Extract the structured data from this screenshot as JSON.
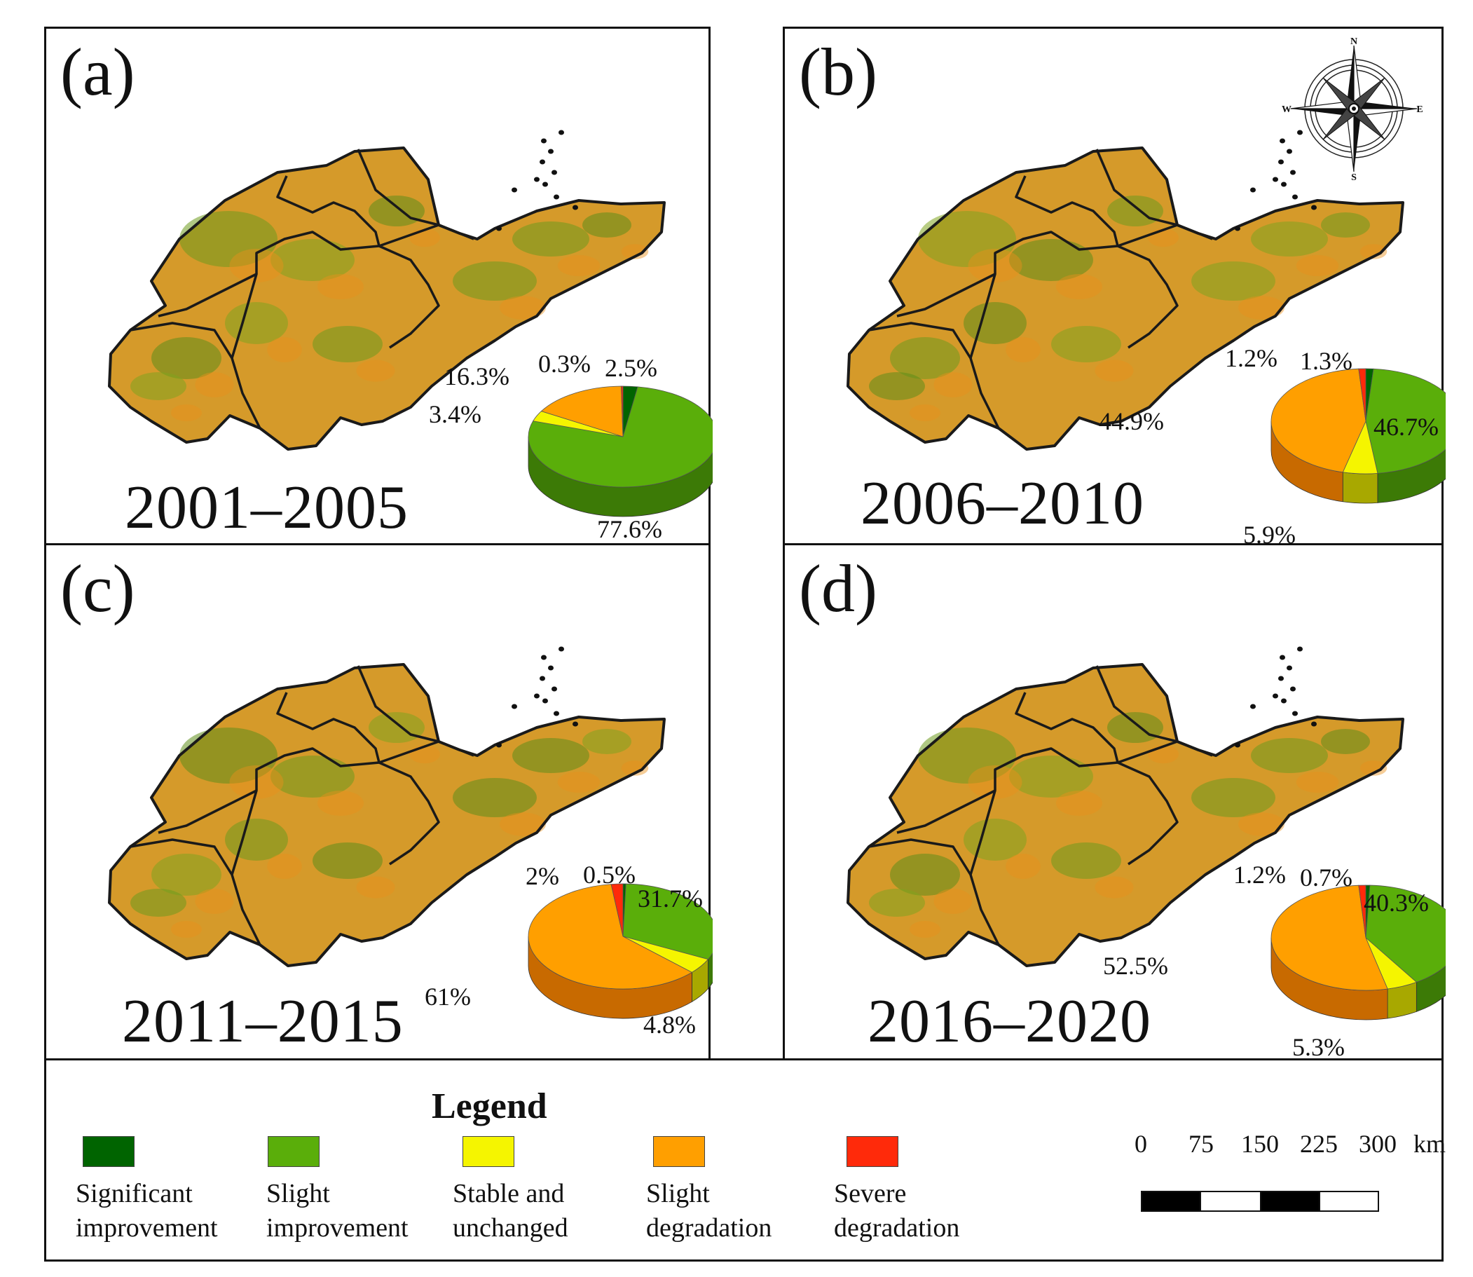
{
  "panels": [
    {
      "label": "(a)",
      "period": "2001–2005",
      "slices": {
        "significant_improvement": 2.5,
        "slight_improvement": 77.6,
        "stable_unchanged": 3.4,
        "slight_degradation": 16.3,
        "severe_degradation": 0.3
      },
      "labels": [
        "2.5%",
        "77.6%",
        "3.4%",
        "16.3%",
        "0.3%"
      ]
    },
    {
      "label": "(b)",
      "period": "2006–2010",
      "slices": {
        "significant_improvement": 1.3,
        "slight_improvement": 46.7,
        "stable_unchanged": 5.9,
        "slight_degradation": 44.9,
        "severe_degradation": 1.2
      },
      "labels": [
        "1.3%",
        "46.7%",
        "5.9%",
        "44.9%",
        "1.2%"
      ]
    },
    {
      "label": "(c)",
      "period": "2011–2015",
      "slices": {
        "significant_improvement": 0.5,
        "slight_improvement": 31.7,
        "stable_unchanged": 4.8,
        "slight_degradation": 61,
        "severe_degradation": 2
      },
      "labels": [
        "0.5%",
        "31.7%",
        "4.8%",
        "61%",
        "2%"
      ]
    },
    {
      "label": "(d)",
      "period": "2016–2020",
      "slices": {
        "significant_improvement": 0.7,
        "slight_improvement": 40.3,
        "stable_unchanged": 5.3,
        "slight_degradation": 52.5,
        "severe_degradation": 1.2
      },
      "labels": [
        "0.7%",
        "40.3%",
        "5.3%",
        "52.5%",
        "1.2%"
      ]
    }
  ],
  "compass": {
    "n": "N",
    "e": "E",
    "s": "S",
    "w": "W"
  },
  "legend": {
    "title": "Legend",
    "items": [
      {
        "label_line1": "Significant",
        "label_line2": "improvement",
        "color": "#006400"
      },
      {
        "label_line1": "Slight",
        "label_line2": "improvement",
        "color": "#5aae0a"
      },
      {
        "label_line1": "Stable and",
        "label_line2": "unchanged",
        "color": "#f5f500"
      },
      {
        "label_line1": "Slight",
        "label_line2": "degradation",
        "color": "#ff9f00"
      },
      {
        "label_line1": "Severe",
        "label_line2": "degradation",
        "color": "#ff2a0a"
      }
    ]
  },
  "scale_bar": {
    "ticks": [
      "0",
      "75",
      "150",
      "225",
      "300"
    ],
    "unit": "km"
  },
  "chart_data": [
    {
      "type": "pie",
      "title": "2001–2005",
      "categories": [
        "Significant improvement",
        "Slight improvement",
        "Stable and unchanged",
        "Slight degradation",
        "Severe degradation"
      ],
      "values": [
        2.5,
        77.6,
        3.4,
        16.3,
        0.3
      ]
    },
    {
      "type": "pie",
      "title": "2006–2010",
      "categories": [
        "Significant improvement",
        "Slight improvement",
        "Stable and unchanged",
        "Slight degradation",
        "Severe degradation"
      ],
      "values": [
        1.3,
        46.7,
        5.9,
        44.9,
        1.2
      ]
    },
    {
      "type": "pie",
      "title": "2011–2015",
      "categories": [
        "Significant improvement",
        "Slight improvement",
        "Stable and unchanged",
        "Slight degradation",
        "Severe degradation"
      ],
      "values": [
        0.5,
        31.7,
        4.8,
        61,
        2
      ]
    },
    {
      "type": "pie",
      "title": "2016–2020",
      "categories": [
        "Significant improvement",
        "Slight improvement",
        "Stable and unchanged",
        "Slight degradation",
        "Severe degradation"
      ],
      "values": [
        0.7,
        40.3,
        5.3,
        52.5,
        1.2
      ]
    }
  ]
}
